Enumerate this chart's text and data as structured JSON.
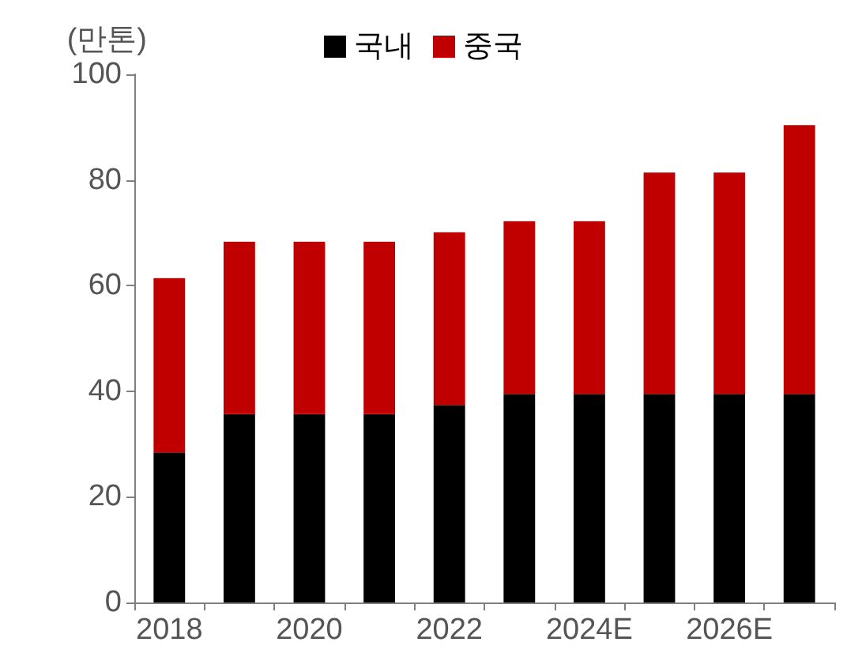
{
  "chart_data": {
    "type": "bar",
    "stacked": true,
    "ylabel": "(만톤)",
    "categories": [
      "2018",
      null,
      "2020",
      null,
      "2022",
      null,
      "2024E",
      null,
      "2026E",
      null
    ],
    "series": [
      {
        "name": "국내",
        "color": "#000000",
        "values": [
          28.4,
          35.7,
          35.7,
          35.7,
          37.4,
          39.5,
          39.5,
          39.5,
          39.5,
          39.5
        ]
      },
      {
        "name": "중국",
        "color": "#c00000",
        "values": [
          33,
          32.6,
          32.6,
          32.6,
          32.7,
          32.7,
          32.7,
          41.9,
          41.9,
          50.9
        ]
      }
    ],
    "ylim": [
      0,
      100
    ],
    "yticks": [
      0,
      20,
      40,
      60,
      80,
      100
    ],
    "grid": false,
    "legend": "top"
  }
}
